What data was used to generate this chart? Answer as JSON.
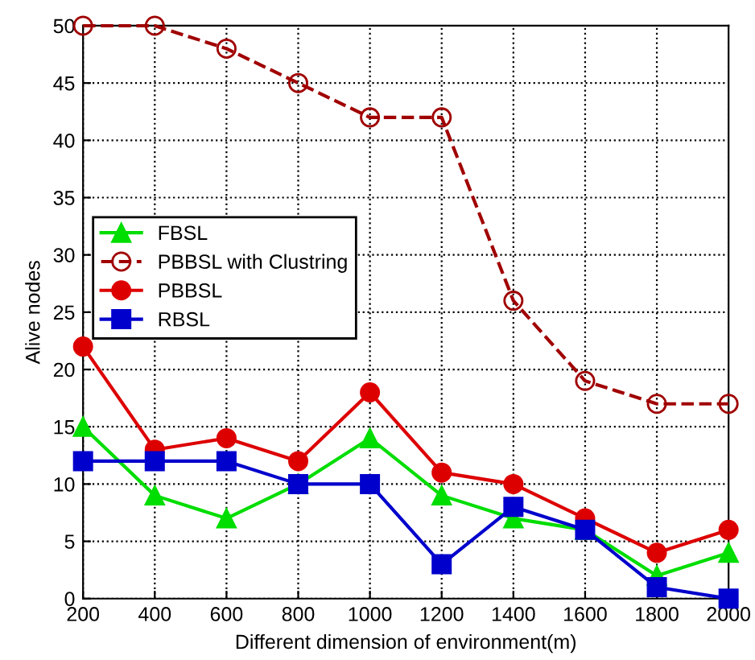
{
  "chart_data": {
    "type": "line",
    "xlabel": "Different dimension of environment(m)",
    "ylabel": "Alive nodes",
    "x": [
      200,
      400,
      600,
      800,
      1000,
      1200,
      1400,
      1600,
      1800,
      2000
    ],
    "series": [
      {
        "name": "FBSL",
        "color": "#00dd00",
        "marker": "triangle",
        "line_style": "solid",
        "values": [
          15,
          9,
          7,
          10,
          14,
          9,
          7,
          6,
          2,
          4
        ]
      },
      {
        "name": "PBBSL with Clustring",
        "color": "#a00000",
        "marker": "circle",
        "line_style": "dashed",
        "values": [
          50,
          50,
          48,
          45,
          42,
          42,
          26,
          19,
          17,
          17
        ]
      },
      {
        "name": "PBBSL",
        "color": "#dd0000",
        "marker": "circle",
        "line_style": "solid",
        "values": [
          22,
          13,
          14,
          12,
          18,
          11,
          10,
          7,
          4,
          6
        ]
      },
      {
        "name": "RBSL",
        "color": "#0000cc",
        "marker": "square",
        "line_style": "solid",
        "values": [
          12,
          12,
          12,
          10,
          10,
          3,
          8,
          6,
          1,
          0
        ]
      }
    ],
    "xlim": [
      200,
      2000
    ],
    "xticks": [
      200,
      400,
      600,
      800,
      1000,
      1200,
      1400,
      1600,
      1800,
      2000
    ],
    "ylim": [
      0,
      50
    ],
    "yticks": [
      0,
      5,
      10,
      15,
      20,
      25,
      30,
      35,
      40,
      45,
      50
    ],
    "grid": true,
    "legend": "left"
  }
}
